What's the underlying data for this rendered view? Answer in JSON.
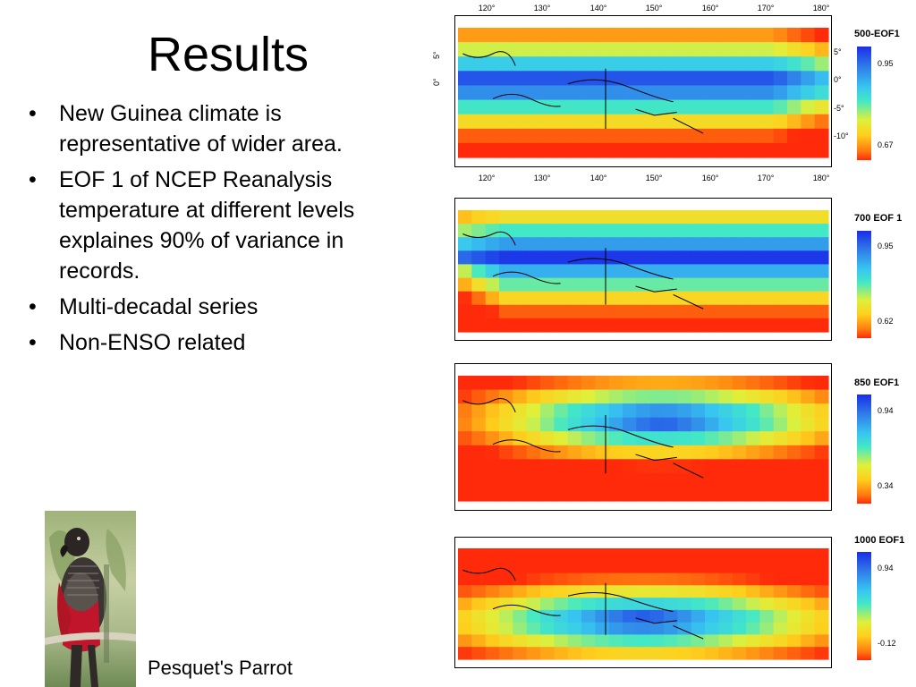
{
  "title": "Results",
  "bullets": [
    "New Guinea climate is representative of wider area.",
    "EOF 1 of NCEP Reanalysis temperature at different levels explaines 90% of variance in records.",
    "Multi-decadal series",
    "Non-ENSO related"
  ],
  "caption": "Pesquet's Parrot",
  "lon_labels": [
    "120°",
    "130°",
    "140°",
    "150°",
    "160°",
    "170°",
    "180°"
  ],
  "lat_labels": [
    "5°",
    "0°",
    "-5°",
    "-10°"
  ],
  "lat_side_labels": [
    "5°",
    "0°"
  ],
  "maps": [
    {
      "name": "500-EOF1",
      "max": "0.95",
      "min": "0.67"
    },
    {
      "name": "700 EOF 1",
      "max": "0.95",
      "min": "0.62"
    },
    {
      "name": "850 EOF1",
      "max": "0.94",
      "min": "0.34"
    },
    {
      "name": "1000 EOF1",
      "max": "0.94",
      "min": "-0.12"
    }
  ]
}
